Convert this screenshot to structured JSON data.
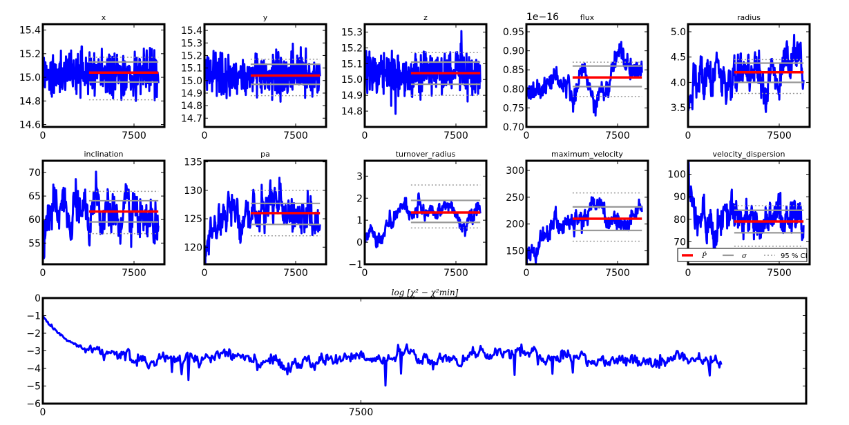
{
  "figure": {
    "legend_labels": {
      "estimate": "P̂",
      "sigma": "σ",
      "ci": "95 % CI"
    },
    "bottom_title": "log [χ² − χ²min]"
  },
  "chart_data": [
    {
      "type": "line",
      "title": "x",
      "xlim": [
        0,
        10000
      ],
      "xticks": [
        0,
        7500
      ],
      "ylim": [
        14.58,
        15.45
      ],
      "yticks": [
        14.6,
        14.8,
        15.0,
        15.2,
        15.4
      ],
      "ytick_labels": [
        "14.6",
        "14.8",
        "15.0",
        "15.2",
        "15.4"
      ],
      "estimate": 15.04,
      "sigma": [
        14.96,
        15.13
      ],
      "ci95": [
        14.81,
        15.17
      ],
      "burn_start": 3800,
      "trace": {
        "type": "stationary",
        "center": 15.04,
        "spread": 0.09,
        "amp": 0.27
      }
    },
    {
      "type": "line",
      "title": "y",
      "xlim": [
        0,
        10000
      ],
      "xticks": [
        0,
        7500
      ],
      "ylim": [
        14.63,
        15.45
      ],
      "yticks": [
        14.7,
        14.8,
        14.9,
        15.0,
        15.1,
        15.2,
        15.3,
        15.4
      ],
      "ytick_labels": [
        "14.7",
        "14.8",
        "14.9",
        "15.0",
        "15.1",
        "15.2",
        "15.3",
        "15.4"
      ],
      "estimate": 15.04,
      "sigma": [
        14.97,
        15.13
      ],
      "ci95": [
        14.88,
        15.17
      ],
      "burn_start": 3800,
      "trace": {
        "type": "stationary",
        "center": 15.04,
        "spread": 0.08,
        "amp": 0.25
      }
    },
    {
      "type": "line",
      "title": "z",
      "xlim": [
        0,
        10000
      ],
      "xticks": [
        0,
        7500
      ],
      "ylim": [
        14.7,
        15.35
      ],
      "yticks": [
        14.8,
        14.9,
        15.0,
        15.1,
        15.2,
        15.3
      ],
      "ytick_labels": [
        "14.8",
        "14.9",
        "15.0",
        "15.1",
        "15.2",
        "15.3"
      ],
      "estimate": 15.04,
      "sigma": [
        14.97,
        15.11
      ],
      "ci95": [
        14.9,
        15.17
      ],
      "burn_start": 3800,
      "trace": {
        "type": "stationary",
        "center": 15.04,
        "spread": 0.07,
        "amp": 0.22
      }
    },
    {
      "type": "line",
      "title": "flux",
      "offset_text": "1e−16",
      "xlim": [
        0,
        10000
      ],
      "xticks": [
        0,
        7500
      ],
      "ylim": [
        0.7,
        0.97
      ],
      "yticks": [
        0.7,
        0.75,
        0.8,
        0.85,
        0.9,
        0.95
      ],
      "ytick_labels": [
        "0.70",
        "0.75",
        "0.80",
        "0.85",
        "0.90",
        "0.95"
      ],
      "estimate": 0.83,
      "sigma": [
        0.806,
        0.86
      ],
      "ci95": [
        0.78,
        0.87
      ],
      "burn_start": 3800,
      "trace": {
        "type": "wander",
        "start": 0.79,
        "center": 0.83,
        "spread": 0.03,
        "amp": 0.08
      }
    },
    {
      "type": "line",
      "title": "radius",
      "xlim": [
        0,
        10000
      ],
      "xticks": [
        0,
        7500
      ],
      "ylim": [
        3.12,
        5.15
      ],
      "yticks": [
        3.5,
        4.0,
        4.5,
        5.0
      ],
      "ytick_labels": [
        "3.5",
        "4.0",
        "4.5",
        "5.0"
      ],
      "estimate": 4.2,
      "sigma": [
        4.0,
        4.38
      ],
      "ci95": [
        3.78,
        4.45
      ],
      "burn_start": 3800,
      "trace": {
        "type": "burnin",
        "start": 3.15,
        "center": 4.2,
        "spread": 0.2,
        "amp": 0.55
      }
    },
    {
      "type": "line",
      "title": "inclination",
      "xlim": [
        0,
        10000
      ],
      "xticks": [
        0,
        7500
      ],
      "ylim": [
        50.5,
        72.5
      ],
      "yticks": [
        55,
        60,
        65,
        70
      ],
      "ytick_labels": [
        "55",
        "60",
        "65",
        "70"
      ],
      "estimate": 61.7,
      "sigma": [
        59.5,
        64.0
      ],
      "ci95": [
        57.0,
        66.0
      ],
      "burn_start": 3800,
      "trace": {
        "type": "burnin",
        "start": 50.5,
        "center": 62.0,
        "spread": 2.5,
        "amp": 6.0
      }
    },
    {
      "type": "line",
      "title": "pa",
      "xlim": [
        0,
        10000
      ],
      "xticks": [
        0,
        7500
      ],
      "ylim": [
        117,
        135.2
      ],
      "yticks": [
        120,
        125,
        130,
        135
      ],
      "ytick_labels": [
        "120",
        "125",
        "130",
        "135"
      ],
      "estimate": 126.0,
      "sigma": [
        124.0,
        127.7
      ],
      "ci95": [
        122.0,
        130.0
      ],
      "burn_start": 3800,
      "trace": {
        "type": "burnin",
        "start": 117,
        "center": 126.0,
        "spread": 1.8,
        "amp": 5.5
      }
    },
    {
      "type": "line",
      "title": "turnover_radius",
      "xlim": [
        0,
        10000
      ],
      "xticks": [
        0,
        7500
      ],
      "ylim": [
        -1.0,
        3.7
      ],
      "yticks": [
        -1,
        0,
        1,
        2,
        3
      ],
      "ytick_labels": [
        "−1",
        "0",
        "1",
        "2",
        "3"
      ],
      "estimate": 1.35,
      "sigma": [
        0.9,
        1.9
      ],
      "ci95": [
        0.65,
        2.6
      ],
      "burn_start": 3800,
      "trace": {
        "type": "wander",
        "start": 0.2,
        "center": 1.25,
        "spread": 0.35,
        "amp": 1.2
      }
    },
    {
      "type": "line",
      "title": "maximum_velocity",
      "xlim": [
        0,
        10000
      ],
      "xticks": [
        0,
        7500
      ],
      "ylim": [
        125,
        318
      ],
      "yticks": [
        150,
        200,
        250,
        300
      ],
      "ytick_labels": [
        "150",
        "200",
        "250",
        "300"
      ],
      "estimate": 210,
      "sigma": [
        188,
        232
      ],
      "ci95": [
        168,
        258
      ],
      "burn_start": 3800,
      "trace": {
        "type": "wander",
        "start": 130,
        "center": 210,
        "spread": 18,
        "amp": 50
      }
    },
    {
      "type": "line",
      "title": "velocity_dispersion",
      "xlim": [
        0,
        10000
      ],
      "xticks": [
        0,
        7500
      ],
      "ylim": [
        60,
        106
      ],
      "yticks": [
        70,
        80,
        90,
        100
      ],
      "ytick_labels": [
        "70",
        "80",
        "90",
        "100"
      ],
      "estimate": 79,
      "sigma": [
        74,
        84
      ],
      "ci95": [
        68,
        86
      ],
      "burn_start": 3800,
      "trace": {
        "type": "burnin",
        "start": 105,
        "center": 79,
        "spread": 4.5,
        "amp": 12
      }
    },
    {
      "type": "line",
      "title": "log [χ² − χ²min]",
      "xlim": [
        0,
        18000
      ],
      "xticks": [
        0,
        7500
      ],
      "ylim": [
        -6,
        0
      ],
      "yticks": [
        -6,
        -5,
        -4,
        -3,
        -2,
        -1,
        0
      ],
      "ytick_labels": [
        "−6",
        "−5",
        "−4",
        "−3",
        "−2",
        "−1",
        "0"
      ],
      "trace": {
        "type": "chi",
        "start": -1.0,
        "center": -3.45,
        "spread": 0.3,
        "amp": 1.1,
        "end": 16000
      }
    }
  ]
}
